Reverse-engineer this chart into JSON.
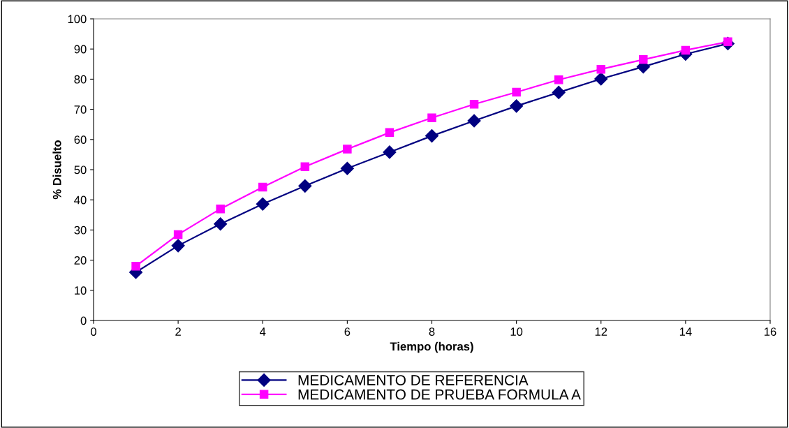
{
  "chart_data": {
    "type": "line",
    "xlabel": "Tiempo (horas)",
    "ylabel": "% Disuelto",
    "x": [
      1,
      2,
      3,
      4,
      5,
      6,
      7,
      8,
      9,
      10,
      11,
      12,
      13,
      14,
      15
    ],
    "series": [
      {
        "name": "MEDICAMENTO DE REFERENCIA",
        "color": "#000080",
        "marker": "diamond",
        "values": [
          16,
          24.8,
          32,
          38.6,
          44.6,
          50.4,
          55.8,
          61.2,
          66.2,
          71.1,
          75.6,
          80.1,
          84.1,
          88.3,
          91.8
        ]
      },
      {
        "name": "MEDICAMENTO DE PRUEBA FORMULA A",
        "color": "#ff00ff",
        "marker": "square",
        "values": [
          18,
          28.5,
          37,
          44.2,
          51,
          56.8,
          62.3,
          67.2,
          71.7,
          75.7,
          79.8,
          83.3,
          86.5,
          89.6,
          92.4
        ]
      }
    ],
    "xlim": [
      0,
      16
    ],
    "xticks": [
      0,
      2,
      4,
      6,
      8,
      10,
      12,
      14,
      16
    ],
    "ylim": [
      0,
      100
    ],
    "yticks": [
      0,
      10,
      20,
      30,
      40,
      50,
      60,
      70,
      80,
      90,
      100
    ],
    "grid": false,
    "legend": "bottom",
    "line_style": "solid"
  }
}
